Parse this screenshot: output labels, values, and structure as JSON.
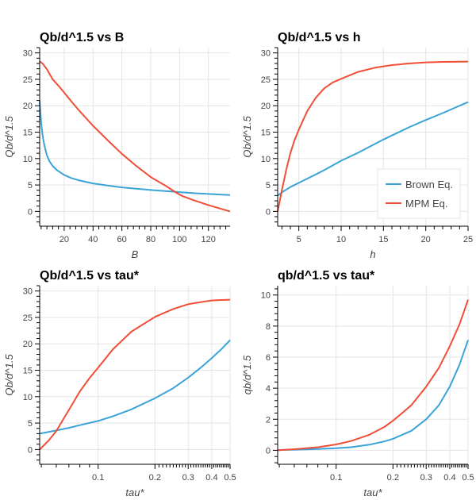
{
  "colors": {
    "brown": "#3aa3d8",
    "mpm": "#f04e36",
    "grid": "#e5e5e5",
    "axis": "#000000"
  },
  "legend": {
    "placement": "bottom-right",
    "items": [
      {
        "label": "Brown Eq.",
        "series": "brown"
      },
      {
        "label": "MPM Eq.",
        "series": "mpm"
      }
    ]
  },
  "chart_data": [
    {
      "type": "line",
      "title": "Qb/d^1.5 vs B",
      "xlabel": "B",
      "ylabel": "Qb/d^1.5",
      "xscale": "linear",
      "xlim": [
        3,
        135
      ],
      "ylim": [
        -2.8,
        31
      ],
      "xticks": [
        20,
        40,
        60,
        80,
        100,
        120
      ],
      "yticks": [
        0,
        5,
        10,
        15,
        20,
        25,
        30
      ],
      "grid": true,
      "legend": false,
      "series": [
        {
          "name": "Brown Eq.",
          "key": "brown",
          "x": [
            3,
            4,
            5,
            6,
            8,
            10,
            12,
            15,
            20,
            25,
            30,
            40,
            50,
            60,
            70,
            80,
            90,
            100,
            110,
            120,
            135
          ],
          "y": [
            21.0,
            17.0,
            14.5,
            12.8,
            10.6,
            9.4,
            8.6,
            7.8,
            6.9,
            6.3,
            5.9,
            5.3,
            4.9,
            4.55,
            4.3,
            4.05,
            3.85,
            3.65,
            3.45,
            3.3,
            3.1
          ]
        },
        {
          "name": "MPM Eq.",
          "key": "mpm",
          "x": [
            3,
            5,
            8,
            12,
            16,
            20,
            25,
            30,
            40,
            50,
            60,
            70,
            80,
            90,
            98,
            102,
            110,
            120,
            135
          ],
          "y": [
            28.4,
            28.0,
            26.9,
            25.0,
            23.8,
            22.5,
            20.8,
            19.2,
            16.2,
            13.5,
            10.9,
            8.6,
            6.5,
            4.9,
            3.5,
            2.9,
            2.1,
            1.2,
            0.0
          ]
        }
      ]
    },
    {
      "type": "line",
      "title": "Qb/d^1.5 vs h",
      "xlabel": "h",
      "ylabel": "Qb/d^1.5",
      "xscale": "linear",
      "xlim": [
        2.5,
        25
      ],
      "ylim": [
        -2.8,
        31
      ],
      "xticks": [
        5,
        10,
        15,
        20,
        25
      ],
      "yticks": [
        0,
        5,
        10,
        15,
        20,
        25,
        30
      ],
      "grid": true,
      "legend": true,
      "series": [
        {
          "name": "Brown Eq.",
          "key": "brown",
          "x": [
            2.5,
            3,
            4,
            5,
            6,
            7,
            8,
            10,
            12,
            15,
            18,
            20,
            22,
            25
          ],
          "y": [
            3.0,
            3.6,
            4.6,
            5.4,
            6.2,
            7.0,
            7.8,
            9.6,
            11.1,
            13.6,
            15.9,
            17.3,
            18.6,
            20.7
          ]
        },
        {
          "name": "MPM Eq.",
          "key": "mpm",
          "x": [
            2.5,
            3,
            3.5,
            4,
            4.5,
            5,
            6,
            7,
            8,
            9,
            10,
            12,
            14,
            16,
            18,
            20,
            22,
            25
          ],
          "y": [
            0.0,
            4.0,
            7.8,
            11.0,
            13.5,
            15.5,
            19.0,
            21.5,
            23.3,
            24.4,
            25.1,
            26.4,
            27.2,
            27.7,
            28.0,
            28.2,
            28.3,
            28.35
          ]
        }
      ]
    },
    {
      "type": "line",
      "title": "Qb/d^1.5 vs tau*",
      "xlabel": "tau*",
      "ylabel": "Qb/d^1.5",
      "xscale": "log",
      "xlim": [
        0.049,
        0.5
      ],
      "ylim": [
        -2.8,
        31
      ],
      "xticks": [
        0.1,
        0.2,
        0.3,
        0.4,
        0.5
      ],
      "xticklabels": [
        "0.1",
        "0.2",
        "0.3",
        "0.4",
        "0.5"
      ],
      "yticks": [
        0,
        5,
        10,
        15,
        20,
        25,
        30
      ],
      "grid": true,
      "legend": false,
      "series": [
        {
          "name": "Brown Eq.",
          "key": "brown",
          "x": [
            0.049,
            0.06,
            0.07,
            0.08,
            0.1,
            0.12,
            0.15,
            0.2,
            0.25,
            0.3,
            0.35,
            0.4,
            0.45,
            0.5
          ],
          "y": [
            3.0,
            3.6,
            4.1,
            4.6,
            5.4,
            6.3,
            7.6,
            9.7,
            11.6,
            13.6,
            15.5,
            17.3,
            19.0,
            20.7
          ]
        },
        {
          "name": "MPM Eq.",
          "key": "mpm",
          "x": [
            0.049,
            0.055,
            0.06,
            0.07,
            0.08,
            0.09,
            0.1,
            0.12,
            0.15,
            0.2,
            0.25,
            0.3,
            0.35,
            0.4,
            0.45,
            0.5
          ],
          "y": [
            0.0,
            1.8,
            3.5,
            7.5,
            11.0,
            13.5,
            15.5,
            19.0,
            22.3,
            25.1,
            26.6,
            27.5,
            27.9,
            28.2,
            28.3,
            28.35
          ]
        }
      ]
    },
    {
      "type": "line",
      "title": "qb/d^1.5 vs tau*",
      "xlabel": "tau*",
      "ylabel": "qb/d^1.5",
      "xscale": "log",
      "xlim": [
        0.049,
        0.5
      ],
      "ylim": [
        -0.9,
        10.6
      ],
      "xticks": [
        0.1,
        0.2,
        0.3,
        0.4,
        0.5
      ],
      "xticklabels": [
        "0.1",
        "0.2",
        "0.3",
        "0.4",
        "0.5"
      ],
      "yticks": [
        0,
        2,
        4,
        6,
        8,
        10
      ],
      "grid": true,
      "legend": false,
      "series": [
        {
          "name": "Brown Eq.",
          "key": "brown",
          "x": [
            0.049,
            0.06,
            0.08,
            0.1,
            0.12,
            0.15,
            0.18,
            0.2,
            0.25,
            0.3,
            0.35,
            0.4,
            0.45,
            0.5
          ],
          "y": [
            0.02,
            0.04,
            0.08,
            0.13,
            0.2,
            0.36,
            0.57,
            0.74,
            1.25,
            2.0,
            2.9,
            4.1,
            5.5,
            7.1
          ]
        },
        {
          "name": "MPM Eq.",
          "key": "mpm",
          "x": [
            0.049,
            0.06,
            0.08,
            0.1,
            0.12,
            0.15,
            0.18,
            0.2,
            0.25,
            0.3,
            0.35,
            0.4,
            0.45,
            0.5
          ],
          "y": [
            0.0,
            0.07,
            0.2,
            0.38,
            0.6,
            1.0,
            1.5,
            1.9,
            2.9,
            4.1,
            5.3,
            6.7,
            8.1,
            9.7
          ]
        }
      ]
    }
  ]
}
